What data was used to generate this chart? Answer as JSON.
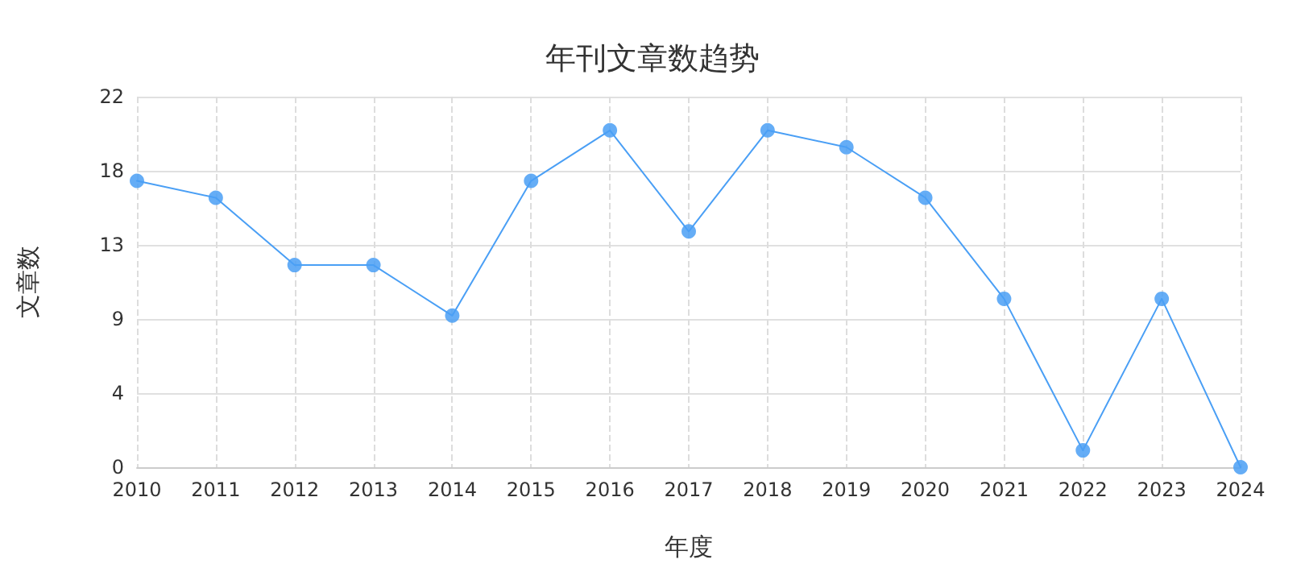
{
  "chart_data": {
    "type": "line",
    "title": "年刊文章数趋势",
    "xlabel": "年度",
    "ylabel": "文章数",
    "categories": [
      "2010",
      "2011",
      "2012",
      "2013",
      "2014",
      "2015",
      "2016",
      "2017",
      "2018",
      "2019",
      "2020",
      "2021",
      "2022",
      "2023",
      "2024"
    ],
    "series": [
      {
        "color": "#4a9ff5",
        "values": [
          17,
          16,
          12,
          12,
          9,
          17,
          20,
          14,
          20,
          19,
          16,
          10,
          1,
          10,
          0
        ]
      }
    ],
    "ylim": [
      0,
      22
    ],
    "yticks": [
      0,
      {
        "value": 4.4,
        "label": "4"
      },
      {
        "value": 8.8,
        "label": "9"
      },
      {
        "value": 13.2,
        "label": "13"
      },
      {
        "value": 17.6,
        "label": "18"
      },
      22
    ],
    "grid": true,
    "marker": "circle",
    "line_style": "solid"
  }
}
